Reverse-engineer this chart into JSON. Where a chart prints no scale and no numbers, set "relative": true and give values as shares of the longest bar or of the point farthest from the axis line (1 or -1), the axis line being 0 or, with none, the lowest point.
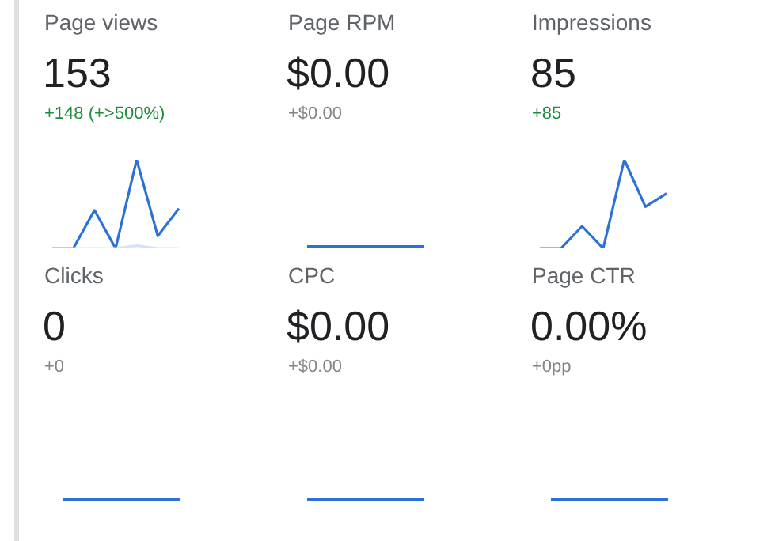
{
  "chart_data": [
    {
      "type": "line",
      "title": "Page views",
      "subtitle": "153",
      "annotations": [
        "+148 (+>500%)"
      ],
      "relative": true,
      "categories": [
        null,
        null,
        null,
        null,
        null,
        null,
        null
      ],
      "series": [
        {
          "color": "#d2e3fc",
          "values": [
            0,
            0,
            0,
            0,
            0.03,
            0,
            0
          ]
        },
        {
          "color": "#2a72d8",
          "values": [
            0,
            0,
            0.43,
            0,
            1,
            0.14,
            0.45
          ]
        }
      ]
    },
    {
      "type": "other",
      "title": "Page RPM",
      "subtitle": "$0.00",
      "annotations": [
        "+$0.00"
      ]
    },
    {
      "type": "line",
      "title": "Impressions",
      "subtitle": "85",
      "annotations": [
        "+85"
      ],
      "relative": true,
      "categories": [
        null,
        null,
        null,
        null,
        null,
        null,
        null
      ],
      "series": [
        {
          "color": "#2a72d8",
          "values": [
            0,
            0,
            0.25,
            0,
            1,
            0.47,
            0.62
          ]
        }
      ]
    },
    {
      "type": "other",
      "title": "Clicks",
      "subtitle": "0",
      "annotations": [
        "+0"
      ]
    },
    {
      "type": "other",
      "title": "CPC",
      "subtitle": "$0.00",
      "annotations": [
        "+$0.00"
      ]
    },
    {
      "type": "other",
      "title": "Page CTR",
      "subtitle": "0.00%",
      "annotations": [
        "+0pp"
      ]
    }
  ]
}
